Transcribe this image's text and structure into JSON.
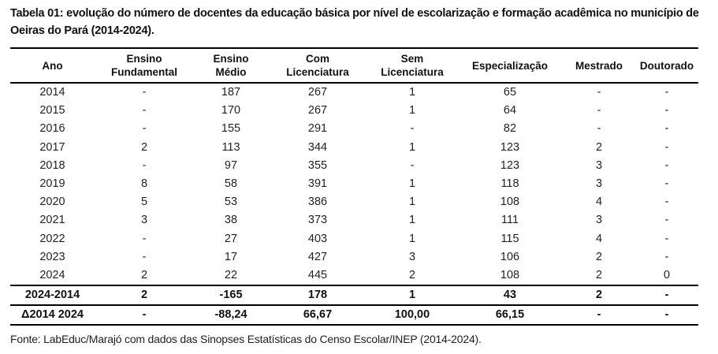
{
  "caption": "Tabela 01: evolução do número de docentes da educação básica por nível de escolarização e formação acadêmica no município de Oeiras do Pará (2014-2024).",
  "table": {
    "headers": [
      {
        "line1": "Ano",
        "line2": ""
      },
      {
        "line1": "Ensino",
        "line2": "Fundamental"
      },
      {
        "line1": "Ensino",
        "line2": "Médio"
      },
      {
        "line1": "Com",
        "line2": "Licenciatura"
      },
      {
        "line1": "Sem",
        "line2": "Licenciatura"
      },
      {
        "line1": "Especialização",
        "line2": ""
      },
      {
        "line1": "Mestrado",
        "line2": ""
      },
      {
        "line1": "Doutorado",
        "line2": ""
      }
    ],
    "rows": [
      [
        "2014",
        "-",
        "187",
        "267",
        "1",
        "65",
        "-",
        "-"
      ],
      [
        "2015",
        "-",
        "170",
        "267",
        "1",
        "64",
        "-",
        "-"
      ],
      [
        "2016",
        "-",
        "155",
        "291",
        "-",
        "82",
        "-",
        "-"
      ],
      [
        "2017",
        "2",
        "113",
        "344",
        "1",
        "123",
        "2",
        "-"
      ],
      [
        "2018",
        "-",
        "97",
        "355",
        "-",
        "123",
        "3",
        "-"
      ],
      [
        "2019",
        "8",
        "58",
        "391",
        "1",
        "118",
        "3",
        "-"
      ],
      [
        "2020",
        "5",
        "53",
        "386",
        "1",
        "108",
        "4",
        "-"
      ],
      [
        "2021",
        "3",
        "38",
        "373",
        "1",
        "111",
        "3",
        "-"
      ],
      [
        "2022",
        "-",
        "27",
        "403",
        "1",
        "115",
        "4",
        "-"
      ],
      [
        "2023",
        "-",
        "17",
        "427",
        "3",
        "106",
        "2",
        "-"
      ],
      [
        "2024",
        "2",
        "22",
        "445",
        "2",
        "108",
        "2",
        "0"
      ]
    ],
    "summary": [
      [
        "2024-2014",
        "2",
        "-165",
        "178",
        "1",
        "43",
        "2",
        "-"
      ],
      [
        "Δ2014 2024",
        "-",
        "-88,24",
        "66,67",
        "100,00",
        "66,15",
        "-",
        "-"
      ]
    ]
  },
  "source": "Fonte: LabEduc/Marajó com dados das Sinopses Estatísticas do Censo Escolar/INEP (2014-2024)."
}
